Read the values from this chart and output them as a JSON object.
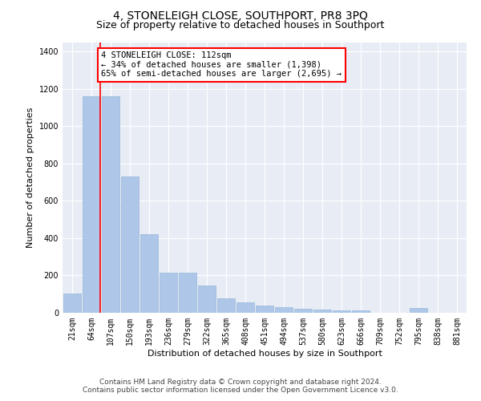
{
  "title": "4, STONELEIGH CLOSE, SOUTHPORT, PR8 3PQ",
  "subtitle": "Size of property relative to detached houses in Southport",
  "xlabel": "Distribution of detached houses by size in Southport",
  "ylabel": "Number of detached properties",
  "bar_labels": [
    "21sqm",
    "64sqm",
    "107sqm",
    "150sqm",
    "193sqm",
    "236sqm",
    "279sqm",
    "322sqm",
    "365sqm",
    "408sqm",
    "451sqm",
    "494sqm",
    "537sqm",
    "580sqm",
    "623sqm",
    "666sqm",
    "709sqm",
    "752sqm",
    "795sqm",
    "838sqm",
    "881sqm"
  ],
  "bar_values": [
    105,
    1160,
    1160,
    730,
    420,
    215,
    215,
    148,
    78,
    55,
    40,
    28,
    20,
    18,
    15,
    13,
    0,
    0,
    25,
    0,
    0
  ],
  "bar_color": "#aec6e8",
  "bar_edge_color": "#8aaed4",
  "annotation_text": "4 STONELEIGH CLOSE: 112sqm\n← 34% of detached houses are smaller (1,398)\n65% of semi-detached houses are larger (2,695) →",
  "annotation_box_color": "white",
  "annotation_box_edge_color": "red",
  "vline_x": 1.45,
  "vline_color": "red",
  "ylim": [
    0,
    1450
  ],
  "yticks": [
    0,
    200,
    400,
    600,
    800,
    1000,
    1200,
    1400
  ],
  "background_color": "#e8edf5",
  "footer_line1": "Contains HM Land Registry data © Crown copyright and database right 2024.",
  "footer_line2": "Contains public sector information licensed under the Open Government Licence v3.0.",
  "title_fontsize": 10,
  "subtitle_fontsize": 9,
  "ylabel_fontsize": 8,
  "xlabel_fontsize": 8,
  "tick_fontsize": 7,
  "annotation_fontsize": 7.5,
  "footer_fontsize": 6.5
}
